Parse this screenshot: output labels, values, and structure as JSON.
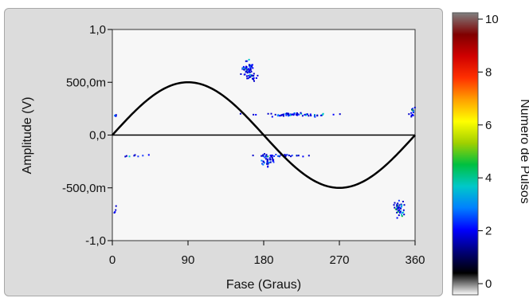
{
  "chart_data": {
    "type": "scatter",
    "xlabel": "Fase (Graus)",
    "ylabel": "Amplitude (V)",
    "xlim": [
      0,
      360
    ],
    "ylim": [
      -1.0,
      1.0
    ],
    "x_ticks": [
      0,
      90,
      180,
      270,
      360
    ],
    "x_tick_labels": [
      "0",
      "90",
      "180",
      "270",
      "360"
    ],
    "y_ticks": [
      1.0,
      0.5,
      0.0,
      -0.5,
      -1.0
    ],
    "y_tick_labels": [
      "1,0",
      "500,0m",
      "0,0",
      "-500,0m",
      "-1,0"
    ],
    "grid": false,
    "plot_background": "#f7f7f7",
    "reference_sine": {
      "amplitude": 0.5,
      "color": "#000000"
    },
    "zero_line": {
      "y": 0,
      "color": "#000000"
    },
    "clusters": [
      {
        "center": [
          160,
          0.63
        ],
        "spread": [
          6,
          0.07
        ],
        "count": 55
      },
      {
        "center": [
          167,
          0.55
        ],
        "spread": [
          4,
          0.03
        ],
        "count": 10
      },
      {
        "center": [
          218,
          0.2
        ],
        "spread": [
          35,
          0.015
        ],
        "count": 70
      },
      {
        "center": [
          357,
          0.22
        ],
        "spread": [
          3,
          0.04
        ],
        "count": 14
      },
      {
        "center": [
          3,
          0.19
        ],
        "spread": [
          2,
          0.01
        ],
        "count": 5
      },
      {
        "center": [
          185,
          -0.23
        ],
        "spread": [
          7,
          0.05
        ],
        "count": 45
      },
      {
        "center": [
          205,
          -0.19
        ],
        "spread": [
          30,
          0.01
        ],
        "count": 25
      },
      {
        "center": [
          30,
          -0.19
        ],
        "spread": [
          25,
          0.008
        ],
        "count": 8
      },
      {
        "center": [
          340,
          -0.7
        ],
        "spread": [
          5,
          0.06
        ],
        "count": 40
      },
      {
        "center": [
          2,
          -0.72
        ],
        "spread": [
          2,
          0.06
        ],
        "count": 4
      }
    ],
    "colorbar": {
      "title": "Numero de Pulsos",
      "range": [
        0,
        10
      ],
      "ticks": [
        0,
        2,
        4,
        6,
        8,
        10
      ],
      "tick_labels": [
        "0",
        "2",
        "4",
        "6",
        "8",
        "10"
      ],
      "stops": [
        "#ffffff",
        "#000000",
        "#00007a",
        "#0000ff",
        "#0080ff",
        "#00c8c8",
        "#00c040",
        "#a0d000",
        "#ffff00",
        "#ffa000",
        "#ff3000",
        "#d00000",
        "#800000",
        "#808080"
      ]
    }
  }
}
